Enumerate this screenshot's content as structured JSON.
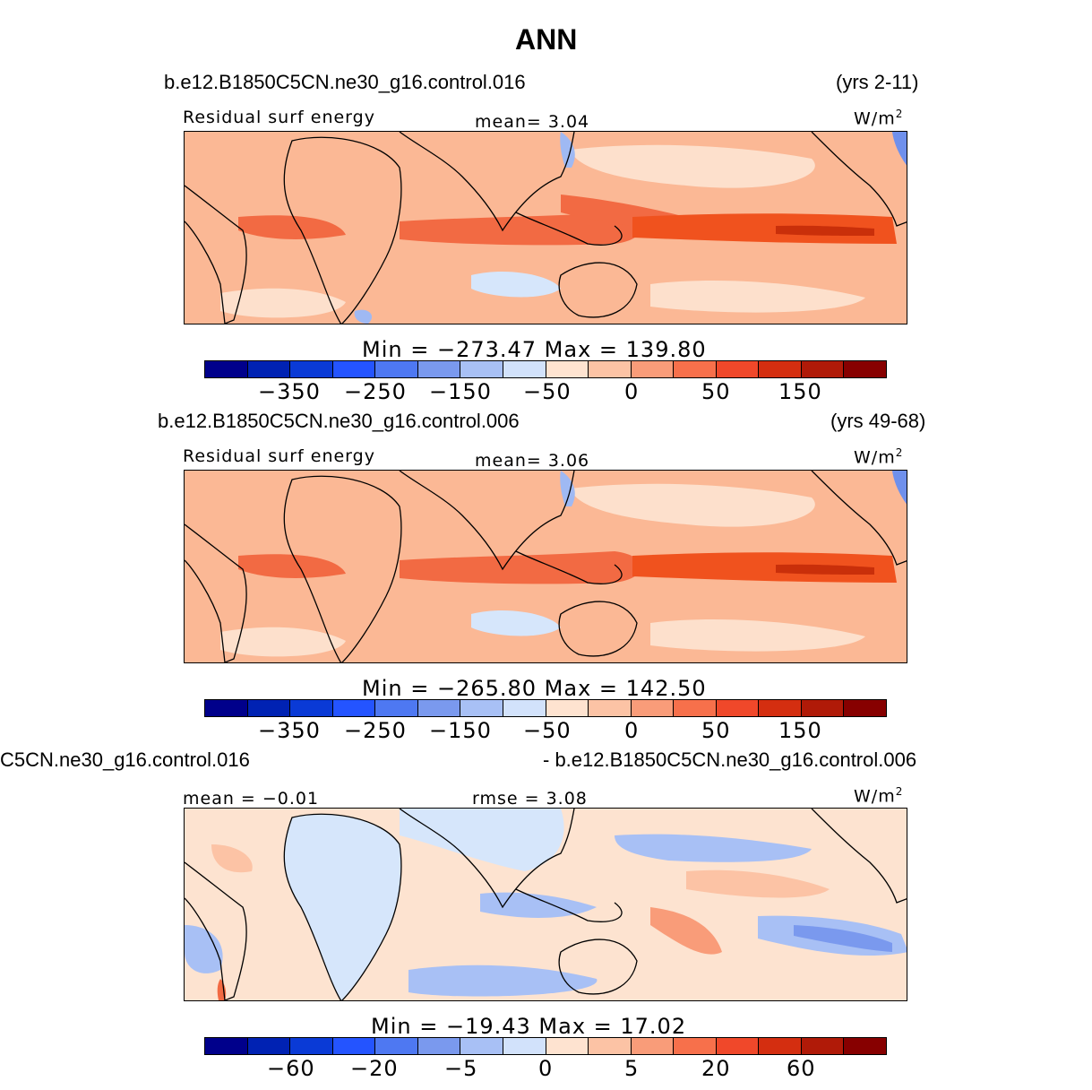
{
  "figure": {
    "title": "ANN"
  },
  "palette": [
    "#00008b",
    "#0022b3",
    "#0a3ad6",
    "#2454ff",
    "#4e78f2",
    "#7a99ee",
    "#a8c0f5",
    "#d2e2fb",
    "#fee3d0",
    "#fcc3a5",
    "#f99c79",
    "#f7704b",
    "#f0482a",
    "#d42e10",
    "#b01a08",
    "#870000"
  ],
  "panels": [
    {
      "case": "b.e12.B1850C5CN.ne30_g16.control.016",
      "years": "(yrs 2-11)",
      "variable": "Residual surf energy",
      "stat": "mean=   3.04",
      "units_main": "W/m",
      "units_sup": "2",
      "minmax": "Min  =  −273.47  Max  =  139.80",
      "ticks": [
        "−350",
        "−250",
        "−150",
        "−50",
        "0",
        "50",
        "150"
      ]
    },
    {
      "case": "b.e12.B1850C5CN.ne30_g16.control.006",
      "years": "(yrs 49-68)",
      "variable": "Residual surf energy",
      "stat": "mean=   3.06",
      "units_main": "W/m",
      "units_sup": "2",
      "minmax": "Min  =  −265.80  Max  =  142.50",
      "ticks": [
        "−350",
        "−250",
        "−150",
        "−50",
        "0",
        "50",
        "150"
      ]
    },
    {
      "case_left": "C5CN.ne30_g16.control.016",
      "case_right": "- b.e12.B1850C5CN.ne30_g16.control.006",
      "stat_left": "mean =   −0.01",
      "stat_right": "rmse =    3.08",
      "units_main": "W/m",
      "units_sup": "2",
      "minmax": "Min  =  −19.43  Max  =   17.02",
      "ticks": [
        "−60",
        "−20",
        "−5",
        "0",
        "5",
        "20",
        "60"
      ]
    }
  ]
}
